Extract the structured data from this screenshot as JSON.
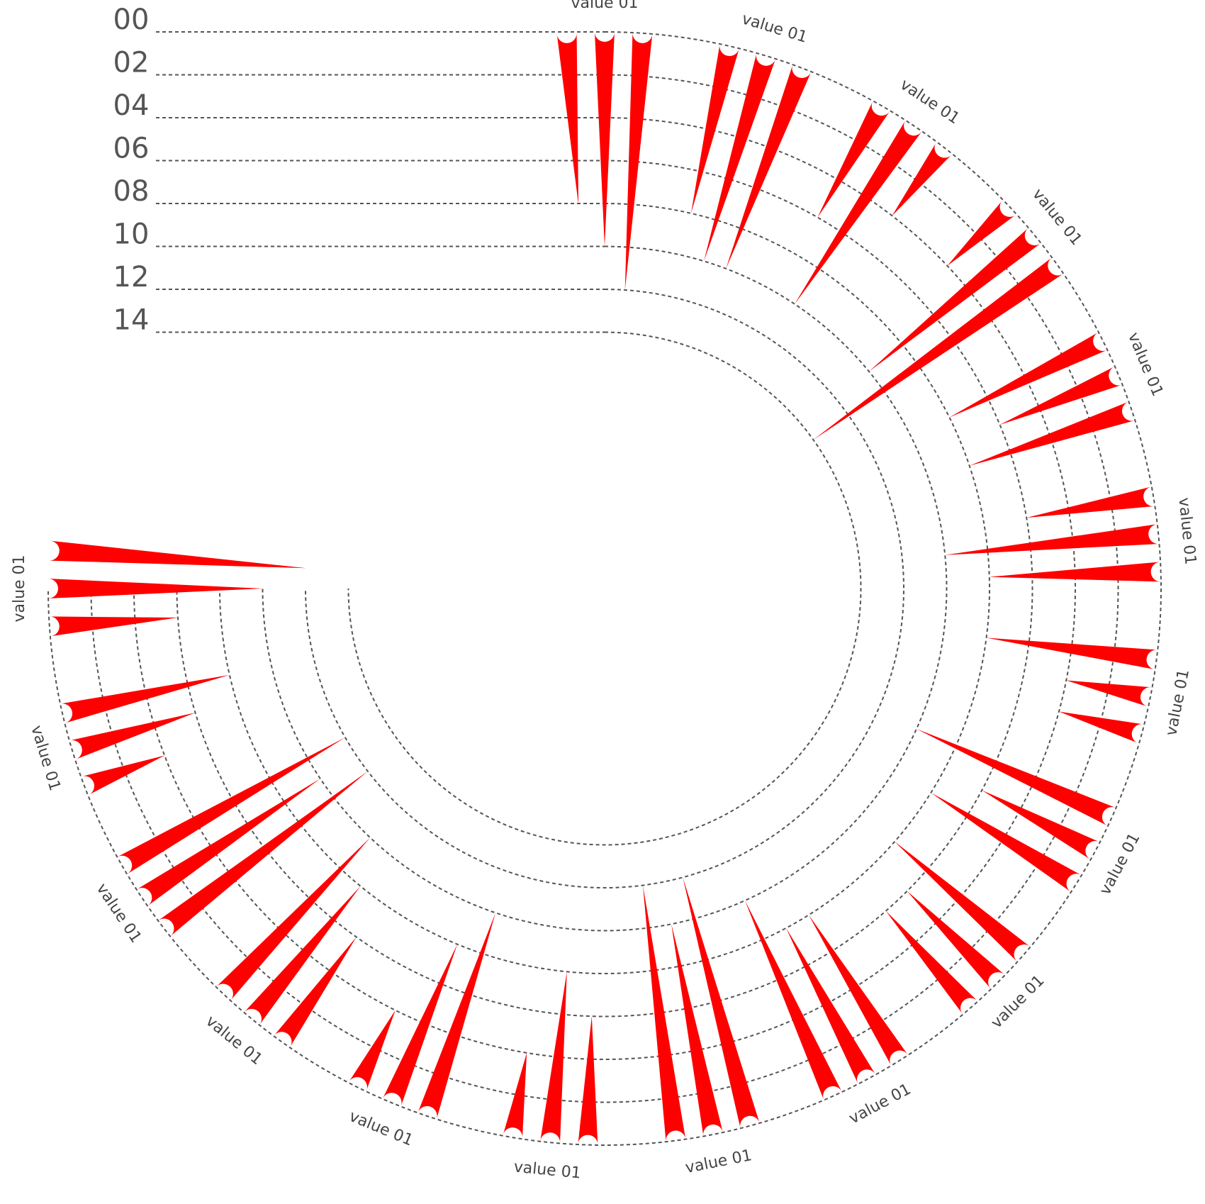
{
  "chart_data": {
    "type": "radial-bar",
    "radial_axis": {
      "ticks": [
        "00",
        "02",
        "04",
        "06",
        "08",
        "10",
        "12",
        "14"
      ],
      "range": [
        0,
        14
      ],
      "grid": true
    },
    "groups": [
      {
        "label": "value 01",
        "values": [
          8,
          10,
          12
        ]
      },
      {
        "label": "value 01",
        "values": [
          8,
          10,
          10
        ]
      },
      {
        "label": "value 01",
        "values": [
          6,
          10,
          4
        ]
      },
      {
        "label": "value 01",
        "values": [
          4,
          10,
          14
        ]
      },
      {
        "label": "value 01",
        "values": [
          8,
          6,
          8
        ]
      },
      {
        "label": "value 01",
        "values": [
          6,
          10,
          8
        ]
      },
      {
        "label": "value 01",
        "values": [
          8,
          4,
          4
        ]
      },
      {
        "label": "value 01",
        "values": [
          10,
          6,
          8
        ]
      },
      {
        "label": "value 01",
        "values": [
          8,
          6,
          6
        ]
      },
      {
        "label": "value 01",
        "values": [
          8,
          8,
          10
        ]
      },
      {
        "label": "value 01",
        "values": [
          12,
          10,
          12
        ]
      },
      {
        "label": "value 01",
        "values": [
          6,
          8,
          4
        ]
      },
      {
        "label": "value 01",
        "values": [
          10,
          8,
          4
        ]
      },
      {
        "label": "value 01",
        "values": [
          6,
          8,
          10
        ]
      },
      {
        "label": "value 01",
        "values": [
          12,
          10,
          12
        ]
      },
      {
        "label": "value 01",
        "values": [
          4,
          6,
          8
        ]
      },
      {
        "label": "value 01",
        "values": [
          6,
          10,
          12
        ]
      }
    ],
    "color": "#ff0000"
  }
}
